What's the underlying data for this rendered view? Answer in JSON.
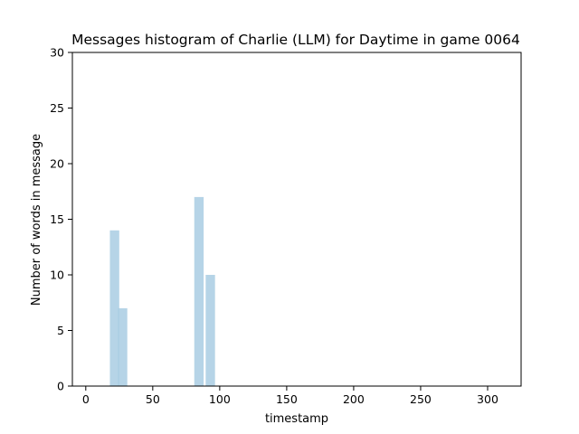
{
  "chart_data": {
    "type": "bar",
    "title": "Messages histogram of Charlie (LLM) for Daytime in game 0064",
    "xlabel": "timestamp",
    "ylabel": "Number of words in message",
    "xlim": [
      -10,
      325
    ],
    "ylim": [
      0,
      30
    ],
    "xticks": [
      0,
      50,
      100,
      150,
      200,
      250,
      300
    ],
    "yticks": [
      0,
      5,
      10,
      15,
      20,
      25,
      30
    ],
    "bar_width": 7,
    "bar_color": "#a9cce3",
    "bar_opacity": 0.85,
    "bars": [
      {
        "x": 21.5,
        "value": 14
      },
      {
        "x": 27.5,
        "value": 7
      },
      {
        "x": 84.5,
        "value": 17
      },
      {
        "x": 93,
        "value": 10
      }
    ],
    "grid": false
  }
}
